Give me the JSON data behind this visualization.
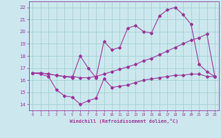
{
  "xlabel": "Windchill (Refroidissement éolien,°C)",
  "background_color": "#cce8ee",
  "grid_color": "#99cccc",
  "line_color": "#993399",
  "xlim": [
    -0.5,
    23.5
  ],
  "ylim": [
    13.5,
    22.5
  ],
  "xticks": [
    0,
    1,
    2,
    3,
    4,
    5,
    6,
    7,
    8,
    9,
    10,
    11,
    12,
    13,
    14,
    15,
    16,
    17,
    18,
    19,
    20,
    21,
    22,
    23
  ],
  "yticks": [
    14,
    15,
    16,
    17,
    18,
    19,
    20,
    21,
    22
  ],
  "line1_x": [
    0,
    1,
    2,
    3,
    4,
    5,
    6,
    7,
    8,
    9,
    10,
    11,
    12,
    13,
    14,
    15,
    16,
    17,
    18,
    19,
    20,
    21,
    22,
    23
  ],
  "line1_y": [
    16.6,
    16.5,
    16.3,
    15.2,
    14.7,
    14.6,
    14.0,
    14.3,
    14.5,
    16.1,
    15.4,
    15.5,
    15.6,
    15.8,
    16.0,
    16.1,
    16.2,
    16.3,
    16.4,
    16.4,
    16.5,
    16.5,
    16.3,
    16.3
  ],
  "line2_x": [
    0,
    1,
    2,
    3,
    4,
    5,
    6,
    7,
    8,
    9,
    10,
    11,
    12,
    13,
    14,
    15,
    16,
    17,
    18,
    19,
    20,
    21,
    22,
    23
  ],
  "line2_y": [
    16.6,
    16.6,
    16.5,
    16.4,
    16.3,
    16.3,
    16.2,
    16.2,
    16.3,
    16.5,
    16.7,
    16.9,
    17.1,
    17.3,
    17.6,
    17.8,
    18.1,
    18.4,
    18.7,
    19.0,
    19.3,
    19.5,
    19.8,
    16.3
  ],
  "line3_x": [
    0,
    1,
    2,
    3,
    4,
    5,
    6,
    7,
    8,
    9,
    10,
    11,
    12,
    13,
    14,
    15,
    16,
    17,
    18,
    19,
    20,
    21,
    22,
    23
  ],
  "line3_y": [
    16.6,
    16.6,
    16.5,
    16.4,
    16.3,
    16.2,
    18.0,
    17.0,
    16.2,
    19.2,
    18.5,
    18.7,
    20.3,
    20.5,
    20.0,
    19.9,
    21.3,
    21.8,
    22.0,
    21.4,
    20.6,
    17.3,
    16.7,
    16.3
  ]
}
